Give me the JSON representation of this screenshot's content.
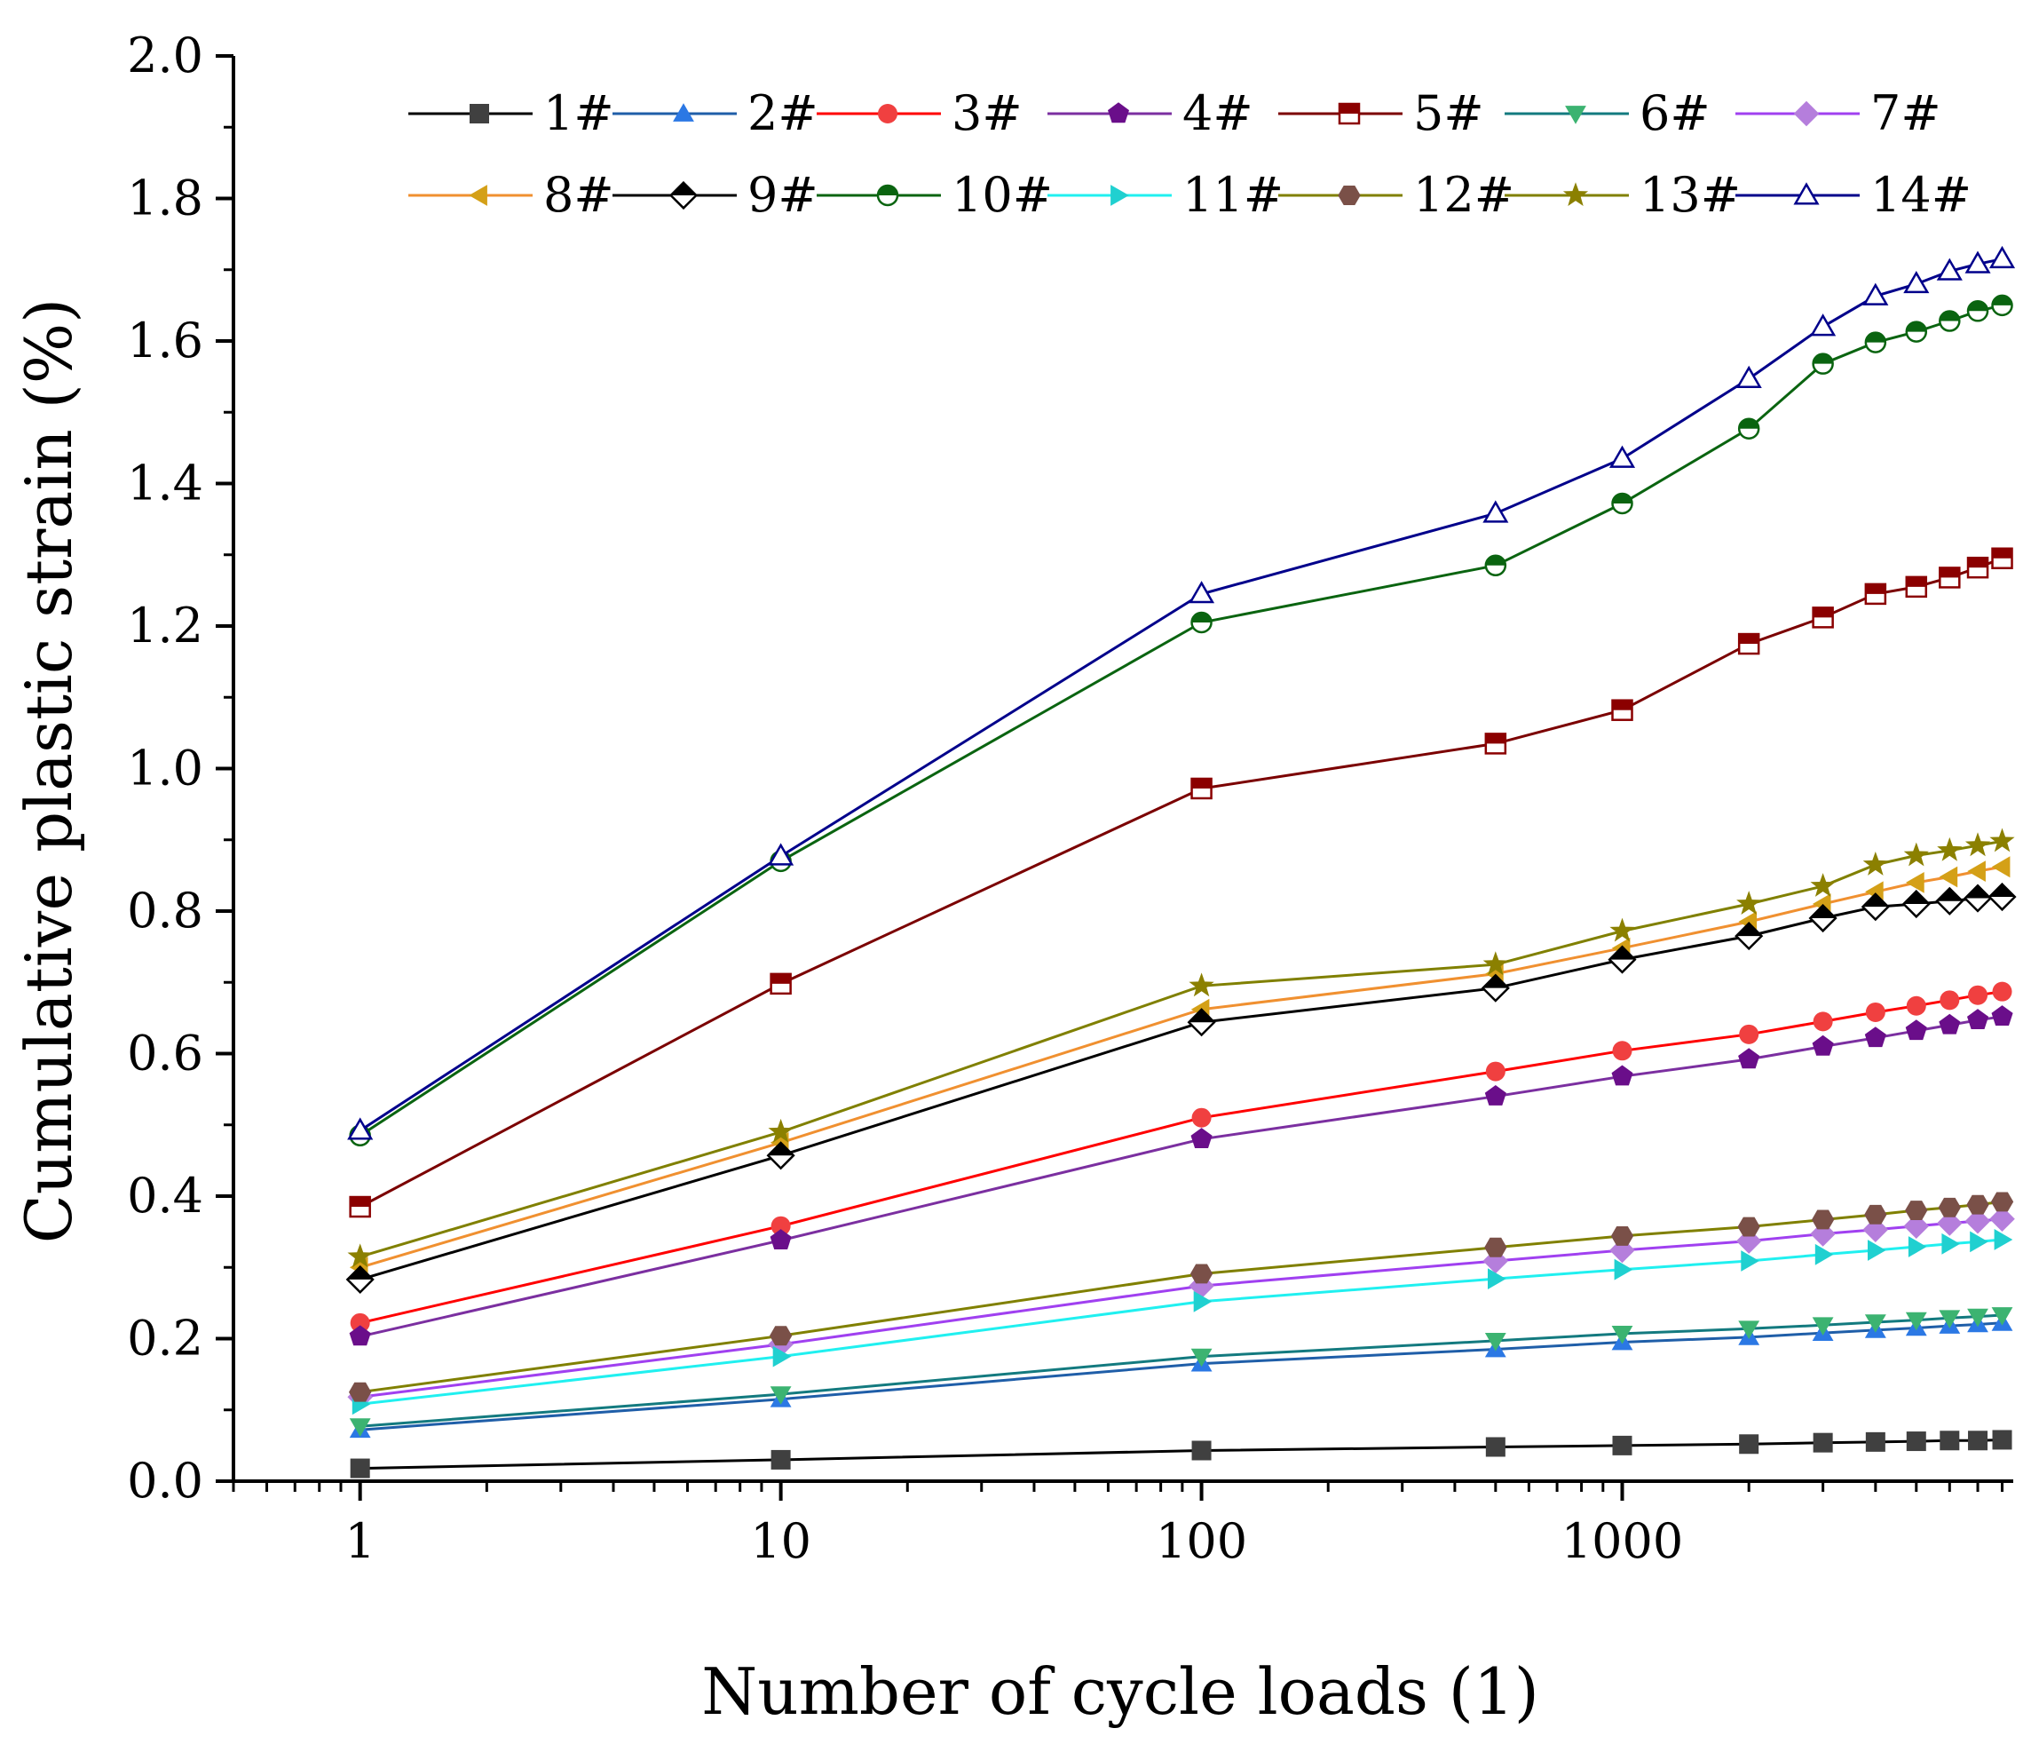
{
  "chart_data": {
    "type": "line",
    "title": "",
    "xlabel": "Number of cycle loads (1)",
    "ylabel": "Cumulative plastic strain (%)",
    "x_scale": "log",
    "xlim": [
      0.5,
      8500
    ],
    "ylim": [
      0,
      2.0
    ],
    "grid": false,
    "legend_position": "top",
    "x_ticks": [
      1,
      10,
      100,
      1000
    ],
    "x_tick_labels": [
      "1",
      "10",
      "100",
      "1000"
    ],
    "y_ticks": [
      0,
      0.2,
      0.4,
      0.6,
      0.8,
      1.0,
      1.2,
      1.4,
      1.6,
      1.8,
      2.0
    ],
    "y_tick_labels": [
      "0.0",
      "0.2",
      "0.4",
      "0.6",
      "0.8",
      "1.0",
      "1.2",
      "1.4",
      "1.6",
      "1.8",
      "2.0"
    ],
    "x": [
      1,
      10,
      100,
      500,
      1000,
      2000,
      3000,
      4000,
      5000,
      6000,
      7000,
      8000
    ],
    "series": [
      {
        "name": "1#",
        "color": "#000000",
        "marker_color": "#404040",
        "marker": "square",
        "values": [
          0.018,
          0.03,
          0.043,
          0.048,
          0.05,
          0.052,
          0.054,
          0.055,
          0.056,
          0.057,
          0.057,
          0.058
        ]
      },
      {
        "name": "2#",
        "color": "#1f5ea8",
        "marker_color": "#2b78e4",
        "marker": "triangle-up",
        "values": [
          0.072,
          0.115,
          0.165,
          0.185,
          0.195,
          0.202,
          0.208,
          0.212,
          0.215,
          0.218,
          0.22,
          0.222
        ]
      },
      {
        "name": "3#",
        "color": "#ff0000",
        "marker_color": "#f04040",
        "marker": "circle",
        "values": [
          0.222,
          0.358,
          0.51,
          0.575,
          0.604,
          0.627,
          0.645,
          0.658,
          0.667,
          0.675,
          0.682,
          0.687
        ]
      },
      {
        "name": "4#",
        "color": "#7b2fa0",
        "marker_color": "#6a0e8a",
        "marker": "pentagon",
        "values": [
          0.203,
          0.338,
          0.48,
          0.54,
          0.568,
          0.592,
          0.61,
          0.622,
          0.632,
          0.64,
          0.647,
          0.652
        ]
      },
      {
        "name": "5#",
        "color": "#7b0000",
        "marker_color": "#8b0000",
        "marker": "square-half",
        "values": [
          0.385,
          0.698,
          0.972,
          1.035,
          1.082,
          1.175,
          1.212,
          1.245,
          1.255,
          1.268,
          1.282,
          1.295
        ]
      },
      {
        "name": "6#",
        "color": "#137a7f",
        "marker_color": "#3cb371",
        "marker": "triangle-down",
        "values": [
          0.077,
          0.122,
          0.175,
          0.197,
          0.207,
          0.214,
          0.219,
          0.223,
          0.226,
          0.229,
          0.231,
          0.233
        ]
      },
      {
        "name": "7#",
        "color": "#a040f0",
        "marker_color": "#b57edc",
        "marker": "diamond",
        "values": [
          0.118,
          0.192,
          0.274,
          0.309,
          0.324,
          0.337,
          0.347,
          0.353,
          0.358,
          0.362,
          0.365,
          0.368
        ]
      },
      {
        "name": "8#",
        "color": "#f09030",
        "marker_color": "#d4a017",
        "marker": "triangle-left",
        "values": [
          0.3,
          0.475,
          0.662,
          0.712,
          0.748,
          0.785,
          0.81,
          0.827,
          0.84,
          0.848,
          0.856,
          0.862
        ]
      },
      {
        "name": "9#",
        "color": "#000000",
        "marker_color": "#000000",
        "marker": "diamond-half",
        "values": [
          0.283,
          0.457,
          0.644,
          0.692,
          0.732,
          0.765,
          0.79,
          0.806,
          0.81,
          0.814,
          0.818,
          0.82
        ]
      },
      {
        "name": "10#",
        "color": "#0a6410",
        "marker_color": "#0a6410",
        "marker": "circle-half",
        "values": [
          0.485,
          0.87,
          1.205,
          1.285,
          1.372,
          1.477,
          1.568,
          1.598,
          1.613,
          1.628,
          1.642,
          1.65
        ]
      },
      {
        "name": "11#",
        "color": "#20f0f0",
        "marker_color": "#20d0d0",
        "marker": "triangle-right",
        "values": [
          0.108,
          0.175,
          0.252,
          0.284,
          0.297,
          0.309,
          0.318,
          0.324,
          0.329,
          0.333,
          0.336,
          0.339
        ]
      },
      {
        "name": "12#",
        "color": "#808000",
        "marker_color": "#7a5048",
        "marker": "hexagon",
        "values": [
          0.125,
          0.204,
          0.291,
          0.328,
          0.344,
          0.357,
          0.367,
          0.374,
          0.38,
          0.384,
          0.388,
          0.392
        ]
      },
      {
        "name": "13#",
        "color": "#808000",
        "marker_color": "#8b8000",
        "marker": "star",
        "values": [
          0.315,
          0.49,
          0.695,
          0.725,
          0.772,
          0.81,
          0.835,
          0.865,
          0.878,
          0.885,
          0.892,
          0.898
        ]
      },
      {
        "name": "14#",
        "color": "#00008b",
        "marker_color": "#00008b",
        "marker": "triangle-open",
        "values": [
          0.492,
          0.877,
          1.245,
          1.358,
          1.435,
          1.547,
          1.62,
          1.663,
          1.68,
          1.698,
          1.708,
          1.715
        ]
      }
    ]
  }
}
